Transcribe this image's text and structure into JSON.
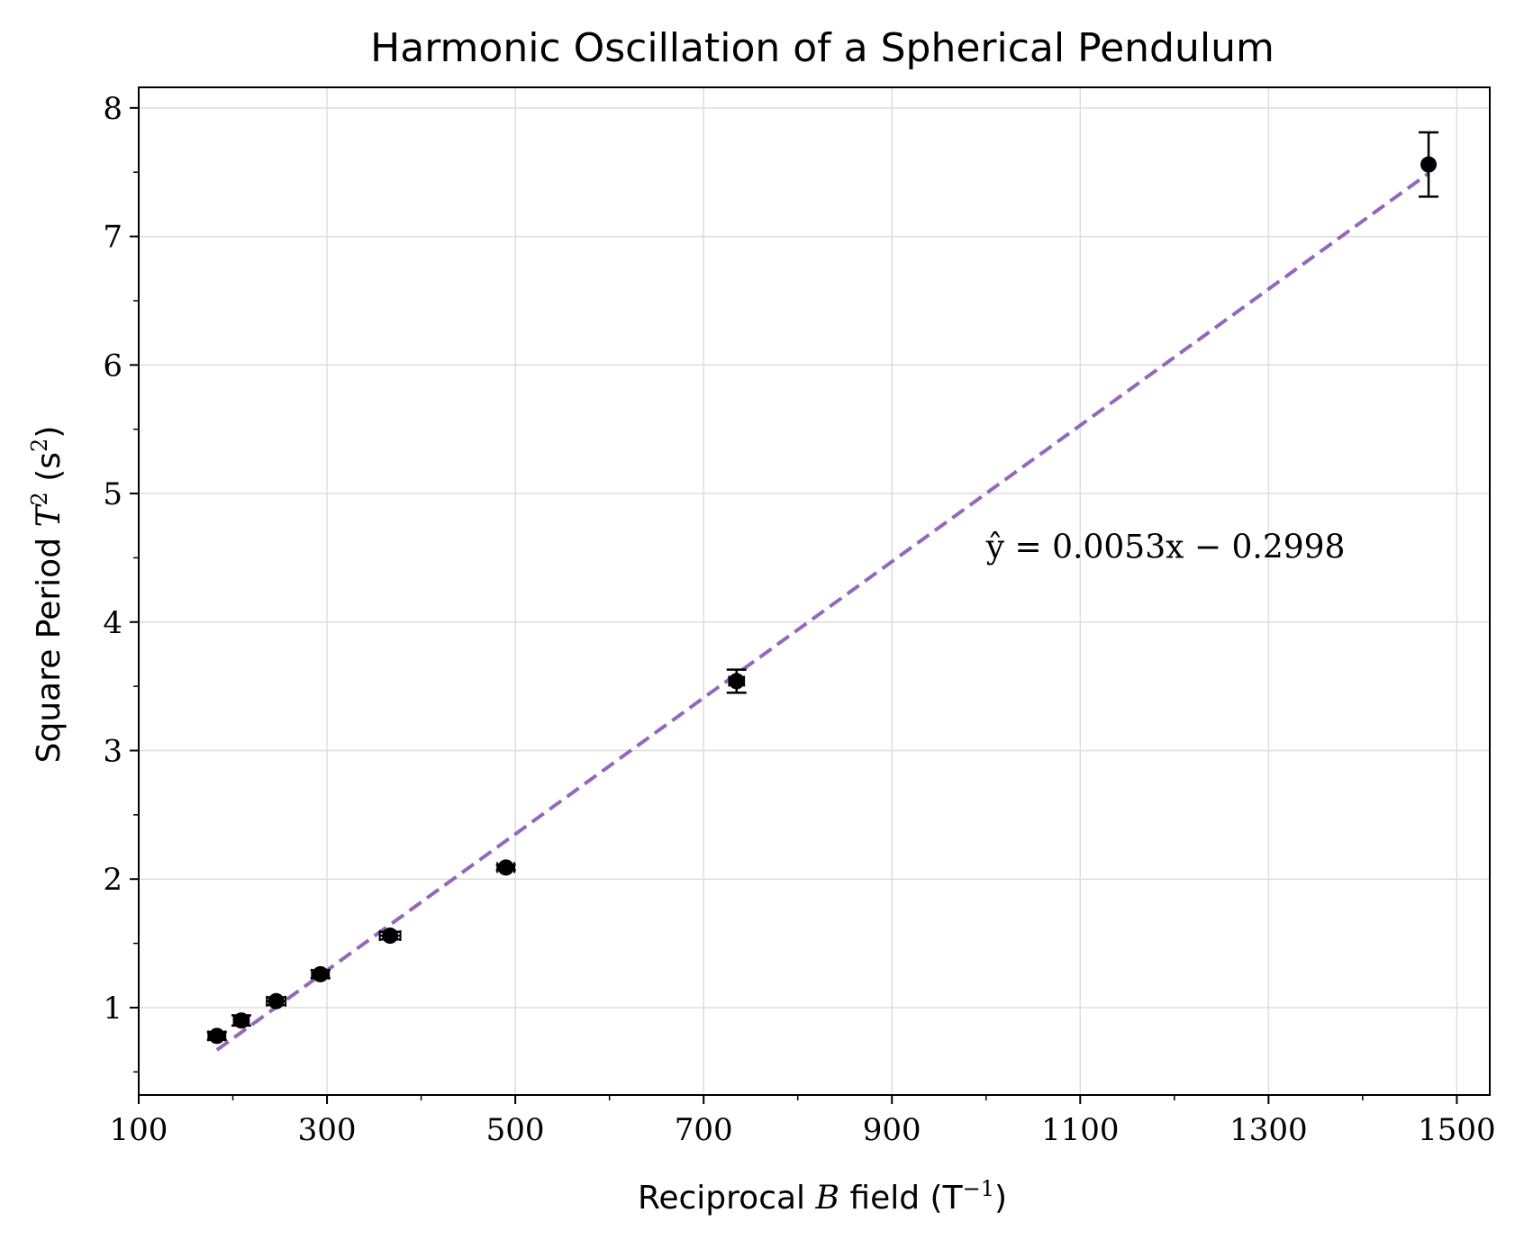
{
  "chart_data": {
    "type": "scatter",
    "title": "Harmonic Oscillation of a Spherical Pendulum",
    "xlabel": {
      "prefix": "Reciprocal ",
      "var": "B",
      "suffix": " field (T",
      "sup": "−1",
      "close": ")"
    },
    "ylabel": {
      "prefix": "Square Period ",
      "var": "T",
      "sup": "2",
      "mid": " (s",
      "sup2": "2",
      "close": ")"
    },
    "xlim": [
      100,
      1535
    ],
    "ylim": [
      0.32,
      8.16
    ],
    "xticks": [
      100,
      300,
      500,
      700,
      900,
      1100,
      1300,
      1500
    ],
    "xticks_minor": [
      200,
      400,
      600,
      800,
      1000,
      1200,
      1400
    ],
    "yticks": [
      1,
      2,
      3,
      4,
      5,
      6,
      7,
      8
    ],
    "yticks_minor": [
      0.5,
      1.5,
      2.5,
      3.5,
      4.5,
      5.5,
      6.5,
      7.5
    ],
    "grid": true,
    "colors": {
      "points": "#000000",
      "fit": "#9467bd",
      "grid": "#dddddd"
    },
    "series": [
      {
        "type": "scatter",
        "x": [
          183,
          209,
          246,
          293,
          367,
          490,
          735,
          1470
        ],
        "y": [
          0.78,
          0.9,
          1.05,
          1.26,
          1.56,
          2.09,
          3.54,
          7.56
        ],
        "yerr": [
          0.03,
          0.04,
          0.03,
          0.03,
          0.03,
          0.02,
          0.09,
          0.25
        ],
        "xerr": [
          9,
          8,
          10,
          9,
          11,
          9,
          8,
          5
        ]
      },
      {
        "type": "line",
        "style": "dashed",
        "x": [
          183,
          1470
        ],
        "slope": 0.0053,
        "intercept": -0.2998
      }
    ],
    "annotations": [
      {
        "text": "ŷ = 0.0053x − 0.2998",
        "x": 1000,
        "y": 4.5
      }
    ]
  }
}
